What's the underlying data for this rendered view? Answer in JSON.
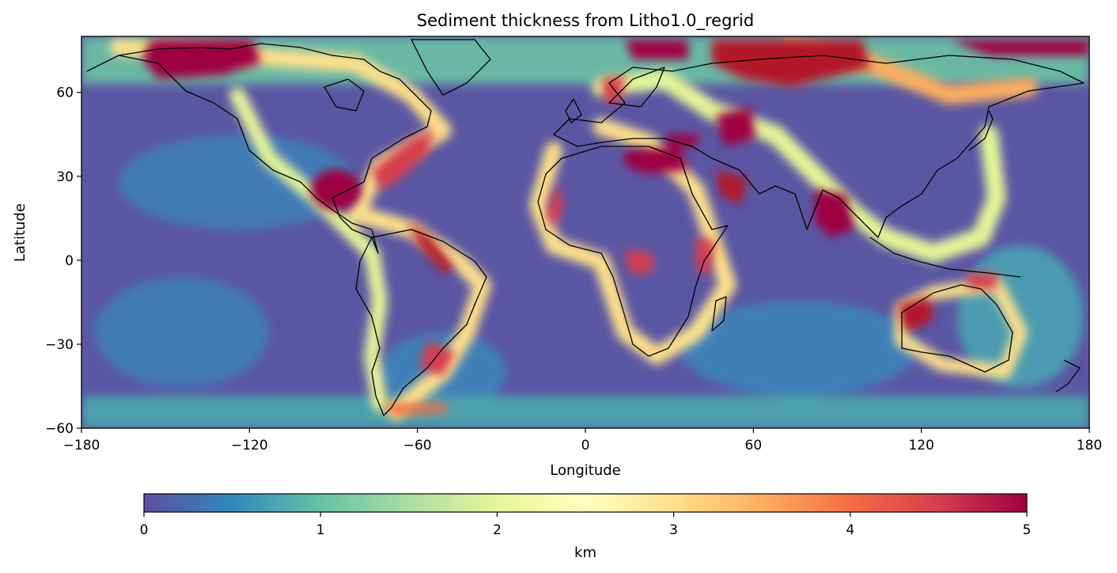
{
  "title": "Sediment thickness from Litho1.0_regrid",
  "map": {
    "xlabel": "Longitude",
    "ylabel": "Latitude",
    "xlim": [
      -180,
      180
    ],
    "ylim": [
      -60,
      80
    ],
    "xticks": [
      -180,
      -120,
      -60,
      0,
      60,
      120,
      180
    ],
    "xtick_labels": [
      "−180",
      "−120",
      "−60",
      "0",
      "60",
      "120",
      "180"
    ],
    "yticks": [
      -60,
      -30,
      0,
      30,
      60
    ],
    "ytick_labels": [
      "−60",
      "−30",
      "0",
      "30",
      "60"
    ],
    "coastlines": true,
    "background_ocean_value_km": 0.3
  },
  "colorbar": {
    "label": "km",
    "colormap": "Spectral_r",
    "range": [
      0,
      5
    ],
    "ticks": [
      0,
      1,
      2,
      3,
      4,
      5
    ],
    "tick_labels": [
      "0",
      "1",
      "2",
      "3",
      "4",
      "5"
    ],
    "stops": [
      "#5e4fa2",
      "#3288bd",
      "#66c2a5",
      "#abdda4",
      "#e6f598",
      "#ffffbf",
      "#fee08b",
      "#fdae61",
      "#f46d43",
      "#d53e4f",
      "#9e0142"
    ]
  },
  "chart_data": {
    "type": "heatmap",
    "title": "Sediment thickness from Litho1.0_regrid",
    "xlabel": "Longitude",
    "ylabel": "Latitude",
    "xlim": [
      -180,
      180
    ],
    "ylim": [
      -60,
      80
    ],
    "value_unit": "km",
    "value_range": [
      0,
      5
    ],
    "sampled_features": [
      {
        "lon": -165,
        "lat": 78,
        "value_km": 5.0
      },
      {
        "lon": -140,
        "lat": 76,
        "value_km": 5.0
      },
      {
        "lon": -90,
        "lat": 27,
        "value_km": 5.0
      },
      {
        "lon": -78,
        "lat": 35,
        "value_km": 4.0
      },
      {
        "lon": -62,
        "lat": 10,
        "value_km": 4.5
      },
      {
        "lon": -58,
        "lat": -35,
        "value_km": 4.5
      },
      {
        "lon": -65,
        "lat": -50,
        "value_km": 3.0
      },
      {
        "lon": 5,
        "lat": 78,
        "value_km": 5.0
      },
      {
        "lon": 20,
        "lat": 36,
        "value_km": 5.0
      },
      {
        "lon": 35,
        "lat": 42,
        "value_km": 5.0
      },
      {
        "lon": 50,
        "lat": 42,
        "value_km": 5.0
      },
      {
        "lon": 50,
        "lat": 28,
        "value_km": 4.5
      },
      {
        "lon": 75,
        "lat": 78,
        "value_km": 5.0
      },
      {
        "lon": 65,
        "lat": 60,
        "value_km": 4.0
      },
      {
        "lon": 88,
        "lat": 18,
        "value_km": 5.0
      },
      {
        "lon": 8,
        "lat": -5,
        "value_km": 4.5
      },
      {
        "lon": 40,
        "lat": -5,
        "value_km": 4.0
      },
      {
        "lon": 22,
        "lat": -2,
        "value_km": 4.0
      },
      {
        "lon": 115,
        "lat": -22,
        "value_km": 4.0
      },
      {
        "lon": 140,
        "lat": -15,
        "value_km": 4.0
      },
      {
        "lon": -150,
        "lat": 0,
        "value_km": 0.2
      },
      {
        "lon": -20,
        "lat": -30,
        "value_km": 0.3
      },
      {
        "lon": 80,
        "lat": -30,
        "value_km": 0.4
      },
      {
        "lon": 0,
        "lat": -55,
        "value_km": 1.5
      }
    ]
  }
}
